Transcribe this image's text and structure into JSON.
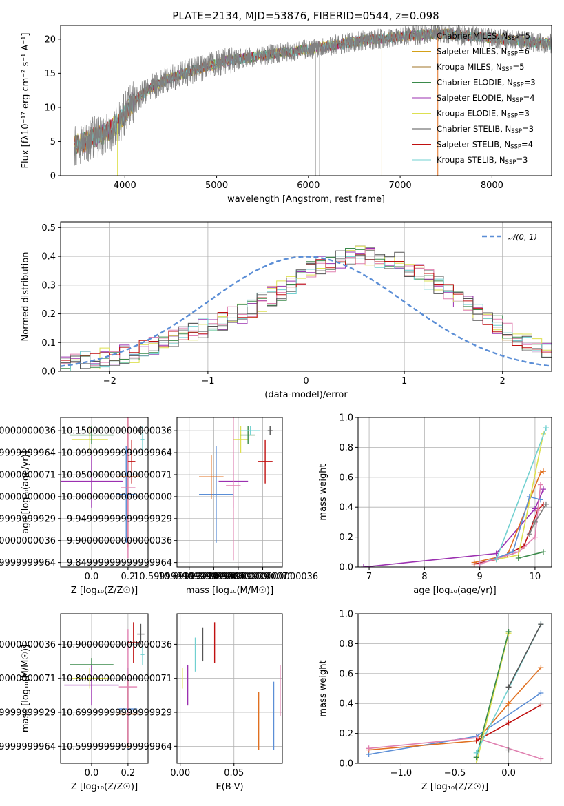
{
  "figure": {
    "title": "PLATE=2134, MJD=53876, FIBERID=0544, z=0.098"
  },
  "colors": {
    "Chabrier MILES": "#808080",
    "Salpeter MILES": "#d4a017",
    "Kroupa MILES": "#a0742a",
    "Chabrier ELODIE": "#3a8a4a",
    "Salpeter ELODIE": "#9b30b0",
    "Kroupa ELODIE": "#dde050",
    "Chabrier STELIB": "#555555",
    "Salpeter STELIB": "#c01010",
    "Kroupa STELIB": "#70d0d0",
    "gauss": "#5b8ed6"
  },
  "chart_data": [
    {
      "id": "spectrum",
      "type": "line",
      "title": "PLATE=2134, MJD=53876, FIBERID=0544, z=0.098",
      "xlabel": "wavelength [Angstrom, rest frame]",
      "ylabel": "Flux [fλ10⁻¹⁷ erg cm⁻² s⁻¹ A⁻¹]",
      "xlim": [
        3300,
        8650
      ],
      "ylim": [
        0,
        22
      ],
      "xticks": [
        4000,
        5000,
        6000,
        7000,
        8000
      ],
      "yticks": [
        0,
        5,
        10,
        15,
        20
      ],
      "grid": false,
      "legend_position": "right",
      "series": [
        {
          "name": "Chabrier MILES, N_SSP=5",
          "color": "#808080"
        },
        {
          "name": "Salpeter MILES, N_SSP=6",
          "color": "#d4a017"
        },
        {
          "name": "Kroupa MILES, N_SSP=5",
          "color": "#a0742a"
        },
        {
          "name": "Chabrier ELODIE, N_SSP=3",
          "color": "#3a8a4a"
        },
        {
          "name": "Salpeter ELODIE, N_SSP=4",
          "color": "#9b30b0"
        },
        {
          "name": "Kroupa ELODIE, N_SSP=3",
          "color": "#dde050"
        },
        {
          "name": "Chabrier STELIB, N_SSP=3",
          "color": "#555555"
        },
        {
          "name": "Salpeter STELIB, N_SSP=4",
          "color": "#c01010"
        },
        {
          "name": "Kroupa STELIB, N_SSP=3",
          "color": "#70d0d0"
        }
      ],
      "continuum": {
        "x": [
          3450,
          3550,
          3650,
          3750,
          3850,
          3950,
          4050,
          4150,
          4300,
          4500,
          4700,
          4900,
          5100,
          5300,
          5500,
          5700,
          5900,
          6100,
          6300,
          6500,
          6700,
          6900,
          7100,
          7300,
          7500,
          7700,
          7900,
          8100,
          8300,
          8500,
          8650
        ],
        "y": [
          4.5,
          4.8,
          5.6,
          6.0,
          6.8,
          8.0,
          10.2,
          11.5,
          13.0,
          14.3,
          15.2,
          16.0,
          16.8,
          17.2,
          17.6,
          18.0,
          18.3,
          18.8,
          19.2,
          19.6,
          20.0,
          20.2,
          20.5,
          20.7,
          20.8,
          20.5,
          20.3,
          20.0,
          19.8,
          19.5,
          19.3
        ]
      }
    },
    {
      "id": "residuals",
      "type": "area",
      "xlabel": "(data-model)/error",
      "ylabel": "Normed distribution",
      "xlim": [
        -2.5,
        2.5
      ],
      "ylim": [
        0,
        0.52
      ],
      "xticks": [
        -2,
        -1,
        0,
        1,
        2
      ],
      "yticks": [
        0.0,
        0.1,
        0.2,
        0.3,
        0.4,
        0.5
      ],
      "grid": true,
      "legend_position": "top-right",
      "legend": "𝒩(0, 1)",
      "bin_width": 0.1,
      "bin_start": -2.5,
      "envelope": [
        0.025,
        0.03,
        0.035,
        0.04,
        0.05,
        0.055,
        0.06,
        0.065,
        0.075,
        0.085,
        0.095,
        0.11,
        0.125,
        0.135,
        0.15,
        0.16,
        0.175,
        0.19,
        0.2,
        0.215,
        0.24,
        0.26,
        0.28,
        0.3,
        0.33,
        0.35,
        0.37,
        0.38,
        0.39,
        0.4,
        0.405,
        0.4,
        0.395,
        0.39,
        0.38,
        0.36,
        0.34,
        0.32,
        0.3,
        0.28,
        0.25,
        0.23,
        0.2,
        0.18,
        0.16,
        0.14,
        0.12,
        0.1,
        0.09,
        0.07
      ]
    },
    {
      "id": "age-vs-Z",
      "type": "scatter",
      "xlabel": "Z [log₁₀(Z/Z☉)]",
      "ylabel": "age  [log₁₀(age/yr)]",
      "xlim": [
        -0.17,
        0.31
      ],
      "ylim": [
        9.84,
        10.18
      ],
      "xticks": [
        0.0,
        0.2
      ],
      "yticks": [
        9.85,
        9.9,
        9.95,
        10.0,
        10.05,
        10.1,
        10.15
      ],
      "grid": true,
      "points": [
        {
          "x": -0.01,
          "xerr": 0.1,
          "y": 10.13,
          "yerr": 0.03,
          "color": "#dde050"
        },
        {
          "x": 0.0,
          "xerr": 0.12,
          "y": 10.14,
          "yerr": 0.02,
          "color": "#3a8a4a"
        },
        {
          "x": 0.0,
          "xerr": 0.17,
          "y": 10.035,
          "yerr": 0.06,
          "color": "#9b30b0"
        },
        {
          "x": 0.19,
          "xerr": 0.05,
          "y": 10.005,
          "yerr": 0.11,
          "color": "#5b8ed6"
        },
        {
          "x": 0.2,
          "xerr": 0.06,
          "y": 10.045,
          "yerr": 0.16,
          "color": "#e07020"
        },
        {
          "x": 0.2,
          "xerr": 0.04,
          "y": 10.02,
          "yerr": 0.16,
          "color": "#e080b0"
        },
        {
          "x": 0.22,
          "xerr": 0.02,
          "y": 10.08,
          "yerr": 0.05,
          "color": "#c01010"
        },
        {
          "x": 0.27,
          "xerr": 0.02,
          "y": 10.15,
          "yerr": 0.01,
          "color": "#555555"
        },
        {
          "x": 0.28,
          "xerr": 0.01,
          "y": 10.13,
          "yerr": 0.03,
          "color": "#70d0d0"
        }
      ]
    },
    {
      "id": "age-vs-mass",
      "type": "scatter",
      "xlabel": "mass [log₁₀(M/M☉)]",
      "ylabel": "",
      "xlim": [
        10.55,
        10.98
      ],
      "ylim": [
        9.84,
        10.18
      ],
      "xticks": [
        10.6,
        10.7,
        10.8,
        10.9
      ],
      "yticks": [
        9.85,
        9.9,
        9.95,
        10.0,
        10.05,
        10.1,
        10.15
      ],
      "grid": true,
      "points": [
        {
          "x": 10.81,
          "xerr": 0.03,
          "y": 10.13,
          "yerr": 0.03,
          "color": "#dde050"
        },
        {
          "x": 10.84,
          "xerr": 0.03,
          "y": 10.14,
          "yerr": 0.02,
          "color": "#3a8a4a"
        },
        {
          "x": 10.78,
          "xerr": 0.06,
          "y": 10.035,
          "yerr": 0.06,
          "color": "#9b30b0"
        },
        {
          "x": 10.71,
          "xerr": 0.07,
          "y": 10.005,
          "yerr": 0.11,
          "color": "#5b8ed6"
        },
        {
          "x": 10.69,
          "xerr": 0.05,
          "y": 10.045,
          "yerr": 0.05,
          "color": "#e07020"
        },
        {
          "x": 10.78,
          "xerr": 0.03,
          "y": 10.025,
          "yerr": 0.17,
          "color": "#e080b0"
        },
        {
          "x": 10.91,
          "xerr": 0.03,
          "y": 10.08,
          "yerr": 0.05,
          "color": "#c01010"
        },
        {
          "x": 10.93,
          "xerr": 0.01,
          "y": 10.15,
          "yerr": 0.01,
          "color": "#555555"
        },
        {
          "x": 10.85,
          "xerr": 0.04,
          "y": 10.15,
          "yerr": 0.01,
          "color": "#70d0d0"
        }
      ]
    },
    {
      "id": "mass-weight-vs-age",
      "type": "line",
      "xlabel": "age  [log₁₀(age/yr)]",
      "ylabel": "mass weight",
      "xlim": [
        6.8,
        10.3
      ],
      "ylim": [
        0,
        1
      ],
      "xticks": [
        7,
        8,
        9,
        10
      ],
      "yticks": [
        0.0,
        0.2,
        0.4,
        0.6,
        0.8,
        1.0
      ],
      "grid": true,
      "series": [
        {
          "color": "#9b30b0",
          "x": [
            6.9,
            9.3,
            10.0,
            10.15
          ],
          "y": [
            0.0,
            0.09,
            0.39,
            0.52
          ]
        },
        {
          "color": "#c01010",
          "x": [
            8.9,
            9.3,
            9.8,
            10.05,
            10.15
          ],
          "y": [
            0.02,
            0.05,
            0.14,
            0.38,
            0.42
          ]
        },
        {
          "color": "#e07020",
          "x": [
            8.9,
            9.5,
            10.1,
            10.15
          ],
          "y": [
            0.03,
            0.08,
            0.63,
            0.64
          ]
        },
        {
          "color": "#5b8ed6",
          "x": [
            9.0,
            9.6,
            9.9,
            10.1
          ],
          "y": [
            0.02,
            0.1,
            0.47,
            0.45
          ]
        },
        {
          "color": "#e080b0",
          "x": [
            9.0,
            9.7,
            10.0,
            10.1
          ],
          "y": [
            0.02,
            0.1,
            0.2,
            0.55
          ]
        },
        {
          "color": "#dde050",
          "x": [
            9.3,
            9.7,
            10.15
          ],
          "y": [
            0.05,
            0.08,
            0.89
          ]
        },
        {
          "color": "#3a8a4a",
          "x": [
            9.7,
            10.15
          ],
          "y": [
            0.06,
            0.1
          ]
        },
        {
          "color": "#70d0d0",
          "x": [
            9.3,
            10.2
          ],
          "y": [
            0.05,
            0.93
          ]
        },
        {
          "color": "#808080",
          "x": [
            9.9,
            10.0,
            10.2
          ],
          "y": [
            0.22,
            0.3,
            0.42
          ]
        }
      ]
    },
    {
      "id": "mass-vs-Z",
      "type": "scatter",
      "xlabel": "Z [log₁₀(Z/Z☉)]",
      "ylabel": "mass [log₁₀(M/M☉)]",
      "xlim": [
        -0.17,
        0.31
      ],
      "ylim": [
        10.55,
        10.99
      ],
      "xticks": [
        0.0,
        0.2
      ],
      "yticks": [
        10.6,
        10.7,
        10.8,
        10.9
      ],
      "grid": true,
      "points": [
        {
          "x": -0.01,
          "xerr": 0.1,
          "y": 10.8,
          "yerr": 0.03,
          "color": "#dde050"
        },
        {
          "x": 0.0,
          "xerr": 0.12,
          "y": 10.84,
          "yerr": 0.02,
          "color": "#3a8a4a"
        },
        {
          "x": 0.0,
          "xerr": 0.15,
          "y": 10.78,
          "yerr": 0.06,
          "color": "#9b30b0"
        },
        {
          "x": 0.2,
          "xerr": 0.05,
          "y": 10.71,
          "yerr": 0.12,
          "color": "#5b8ed6"
        },
        {
          "x": 0.2,
          "xerr": 0.06,
          "y": 10.695,
          "yerr": 0.1,
          "color": "#e07020"
        },
        {
          "x": 0.2,
          "xerr": 0.05,
          "y": 10.775,
          "yerr": 0.17,
          "color": "#e080b0"
        },
        {
          "x": 0.23,
          "xerr": 0.03,
          "y": 10.905,
          "yerr": 0.06,
          "color": "#c01010"
        },
        {
          "x": 0.27,
          "xerr": 0.02,
          "y": 10.93,
          "yerr": 0.03,
          "color": "#555555"
        },
        {
          "x": 0.28,
          "xerr": 0.01,
          "y": 10.87,
          "yerr": 0.03,
          "color": "#70d0d0"
        }
      ]
    },
    {
      "id": "mass-vs-ebv",
      "type": "scatter",
      "xlabel": "E(B-V)",
      "ylabel": "",
      "xlim": [
        -0.003,
        0.095
      ],
      "ylim": [
        10.55,
        10.99
      ],
      "xticks": [
        0.0,
        0.05
      ],
      "yticks": [
        10.6,
        10.7,
        10.8,
        10.9
      ],
      "grid": true,
      "points": [
        {
          "x": 0.002,
          "xerr": 0,
          "y": 10.8,
          "yerr": 0.03,
          "color": "#dde050"
        },
        {
          "x": 0.007,
          "xerr": 0,
          "y": 10.78,
          "yerr": 0.06,
          "color": "#9b30b0"
        },
        {
          "x": 0.014,
          "xerr": 0,
          "y": 10.87,
          "yerr": 0.05,
          "color": "#70d0d0"
        },
        {
          "x": 0.021,
          "xerr": 0,
          "y": 10.9,
          "yerr": 0.05,
          "color": "#555555"
        },
        {
          "x": 0.032,
          "xerr": 0,
          "y": 10.905,
          "yerr": 0.06,
          "color": "#c01010"
        },
        {
          "x": 0.073,
          "xerr": 0,
          "y": 10.675,
          "yerr": 0.085,
          "color": "#e07020"
        },
        {
          "x": 0.087,
          "xerr": 0,
          "y": 10.69,
          "yerr": 0.1,
          "color": "#5b8ed6"
        },
        {
          "x": 0.093,
          "xerr": 0,
          "y": 10.765,
          "yerr": 0.075,
          "color": "#e080b0"
        }
      ]
    },
    {
      "id": "mass-weight-vs-Z",
      "type": "line",
      "xlabel": "Z [log₁₀(Z/Z☉)]",
      "ylabel": "mass weight",
      "xlim": [
        -1.4,
        0.4
      ],
      "ylim": [
        0,
        1
      ],
      "xticks": [
        -1.0,
        -0.5,
        0.0
      ],
      "yticks": [
        0.0,
        0.2,
        0.4,
        0.6,
        0.8,
        1.0
      ],
      "grid": true,
      "series": [
        {
          "color": "#5b8ed6",
          "x": [
            -1.3,
            -0.3,
            0.3
          ],
          "y": [
            0.06,
            0.18,
            0.47
          ]
        },
        {
          "color": "#e07020",
          "x": [
            -1.3,
            -0.3,
            0.0,
            0.3
          ],
          "y": [
            0.09,
            0.15,
            0.4,
            0.64
          ]
        },
        {
          "color": "#e080b0",
          "x": [
            -1.3,
            -0.3,
            0.3
          ],
          "y": [
            0.1,
            0.17,
            0.03
          ]
        },
        {
          "color": "#c01010",
          "x": [
            -0.3,
            0.0,
            0.3
          ],
          "y": [
            0.15,
            0.27,
            0.39
          ]
        },
        {
          "color": "#dde050",
          "x": [
            -0.3,
            0.0
          ],
          "y": [
            0.0,
            0.87
          ]
        },
        {
          "color": "#3a8a4a",
          "x": [
            -0.3,
            0.0
          ],
          "y": [
            0.04,
            0.88
          ]
        },
        {
          "color": "#70d0d0",
          "x": [
            -0.3,
            0.3
          ],
          "y": [
            0.07,
            0.93
          ]
        },
        {
          "color": "#555555",
          "x": [
            0.0,
            0.3
          ],
          "y": [
            0.51,
            0.93
          ]
        },
        {
          "color": "#808080",
          "x": [
            0.0
          ],
          "y": [
            0.09
          ]
        }
      ]
    }
  ]
}
